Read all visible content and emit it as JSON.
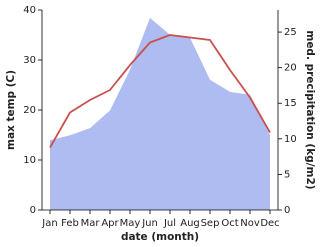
{
  "chart_data": {
    "type": "line-area",
    "x_label": "date (month)",
    "y_label": "max temp (C)",
    "y2_label": "med. precipitation (kg/m2)",
    "categories": [
      "Jan",
      "Feb",
      "Mar",
      "Apr",
      "May",
      "Jun",
      "Jul",
      "Aug",
      "Sep",
      "Oct",
      "Nov",
      "Dec"
    ],
    "series": [
      {
        "name": "med. precipitation",
        "type": "area",
        "axis": "y2",
        "color": "#aebcf2",
        "values": [
          9.8,
          10.5,
          11.5,
          14,
          19.7,
          27,
          24.6,
          24.2,
          18.3,
          16.6,
          16.2,
          10.5
        ]
      },
      {
        "name": "max temp",
        "type": "line",
        "color": "#c8504d",
        "values": [
          12.5,
          19.5,
          22,
          24,
          29,
          33.5,
          35,
          34.5,
          34,
          28,
          22.5,
          15.5
        ]
      }
    ],
    "ylim": [
      0,
      40
    ],
    "yticks": [
      0,
      10,
      20,
      30,
      40
    ],
    "y2lim": [
      0,
      28.1
    ],
    "y2ticks": [
      0,
      5,
      10,
      15,
      20,
      25
    ]
  }
}
